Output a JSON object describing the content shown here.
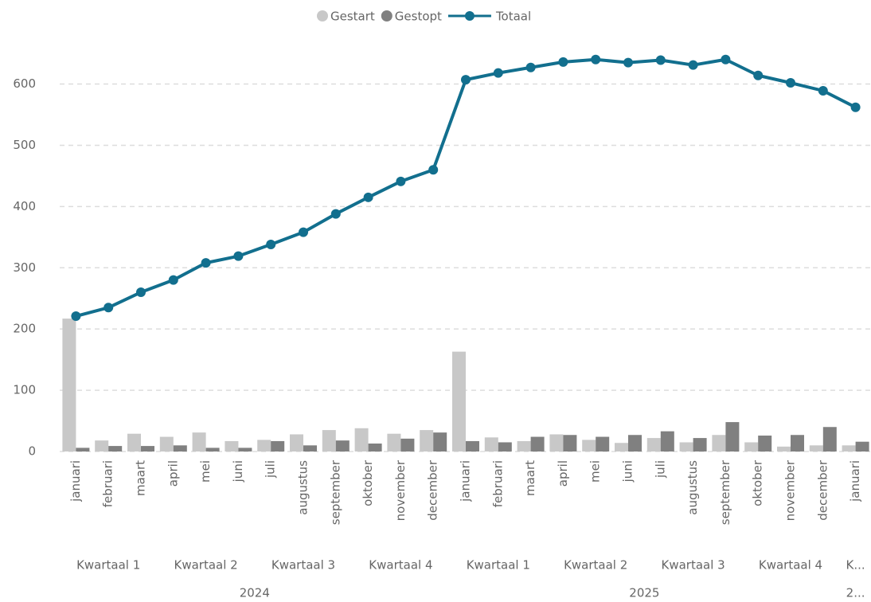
{
  "chart_data": {
    "type": "combo",
    "categories": [
      "januari",
      "februari",
      "maart",
      "april",
      "mei",
      "juni",
      "juli",
      "augustus",
      "september",
      "oktober",
      "november",
      "december",
      "januari",
      "februari",
      "maart",
      "april",
      "mei",
      "juni",
      "juli",
      "augustus",
      "september",
      "oktober",
      "november",
      "december",
      "januari"
    ],
    "quarters": [
      "Kwartaal 1",
      "Kwartaal 2",
      "Kwartaal 3",
      "Kwartaal 4",
      "Kwartaal 1",
      "Kwartaal 2",
      "Kwartaal 3",
      "Kwartaal 4",
      "K..."
    ],
    "years": [
      "2024",
      "2025",
      "2..."
    ],
    "series": [
      {
        "name": "Gestart",
        "type": "bar",
        "color": "#c8c8c8",
        "values": [
          217,
          18,
          29,
          24,
          31,
          17,
          19,
          28,
          35,
          38,
          29,
          35,
          163,
          23,
          17,
          28,
          19,
          14,
          22,
          15,
          27,
          15,
          8,
          10,
          10
        ]
      },
      {
        "name": "Gestopt",
        "type": "bar",
        "color": "#808080",
        "values": [
          6,
          9,
          9,
          10,
          6,
          6,
          17,
          10,
          18,
          13,
          21,
          31,
          17,
          15,
          24,
          27,
          24,
          27,
          33,
          22,
          48,
          26,
          27,
          40,
          16
        ]
      },
      {
        "name": "Totaal",
        "type": "line",
        "color": "#126f8e",
        "values": [
          221,
          235,
          260,
          280,
          308,
          319,
          338,
          358,
          388,
          415,
          441,
          460,
          607,
          618,
          627,
          636,
          640,
          635,
          639,
          631,
          640,
          614,
          602,
          589,
          562
        ]
      }
    ],
    "ylim": [
      0,
      680
    ],
    "yticks": [
      0,
      100,
      200,
      300,
      400,
      500,
      600
    ],
    "grid": true,
    "legend": "top"
  }
}
